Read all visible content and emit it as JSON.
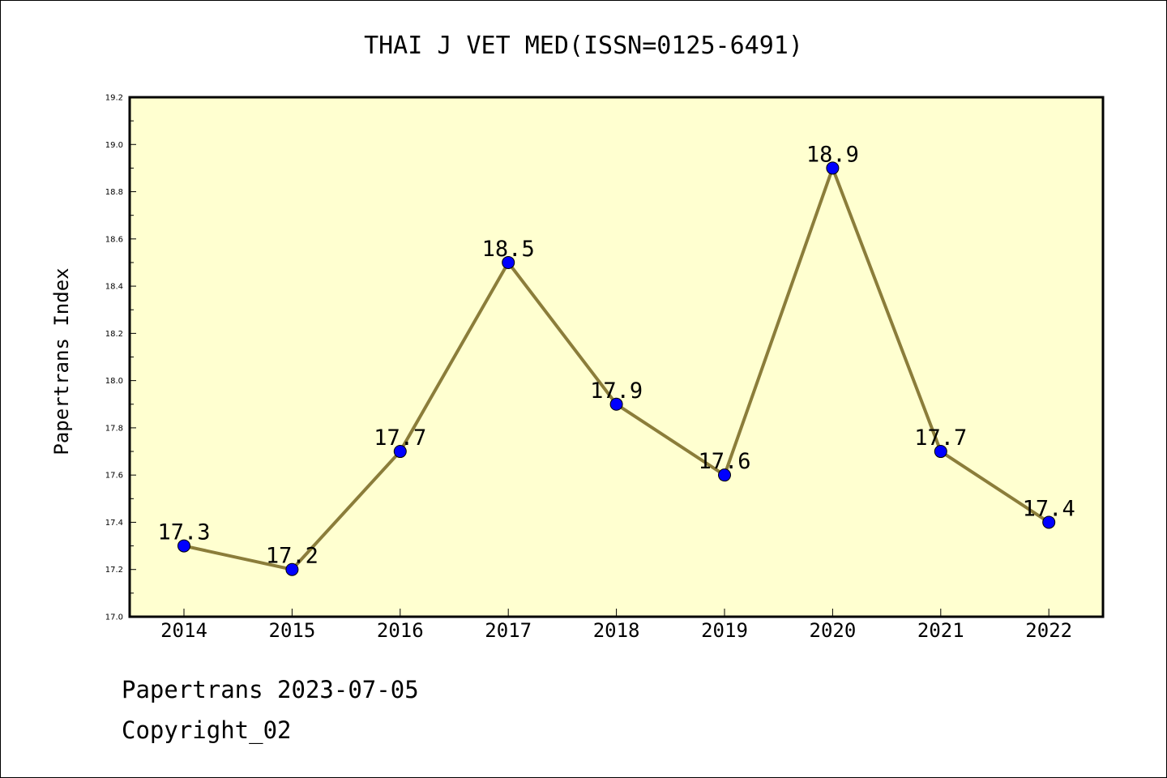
{
  "chart_data": {
    "type": "line",
    "title": "THAI J VET MED(ISSN=0125-6491)",
    "ylabel": "Papertrans Index",
    "xlabel": "",
    "categories": [
      "2014",
      "2015",
      "2016",
      "2017",
      "2018",
      "2019",
      "2020",
      "2021",
      "2022"
    ],
    "series": [
      {
        "values": [
          17.3,
          17.2,
          17.7,
          18.5,
          17.9,
          17.6,
          18.9,
          17.7,
          17.4
        ],
        "data_labels": [
          "17.3",
          "17.2",
          "17.7",
          "18.5",
          "17.9",
          "17.6",
          "18.9",
          "17.7",
          "17.4"
        ]
      }
    ],
    "ylim": [
      17.0,
      19.2
    ],
    "y_ticks": [
      "17.0",
      "17.2",
      "17.4",
      "17.6",
      "17.8",
      "18.0",
      "18.2",
      "18.4",
      "18.6",
      "18.8",
      "19.0",
      "19.2"
    ],
    "grid": false,
    "legend": "none",
    "colors": {
      "plot_background": "#ffffd0",
      "line": "#8b7d3a",
      "marker": "#0000ff"
    }
  },
  "footer": {
    "line1": "Papertrans 2023-07-05",
    "line2": "Copyright_02"
  }
}
